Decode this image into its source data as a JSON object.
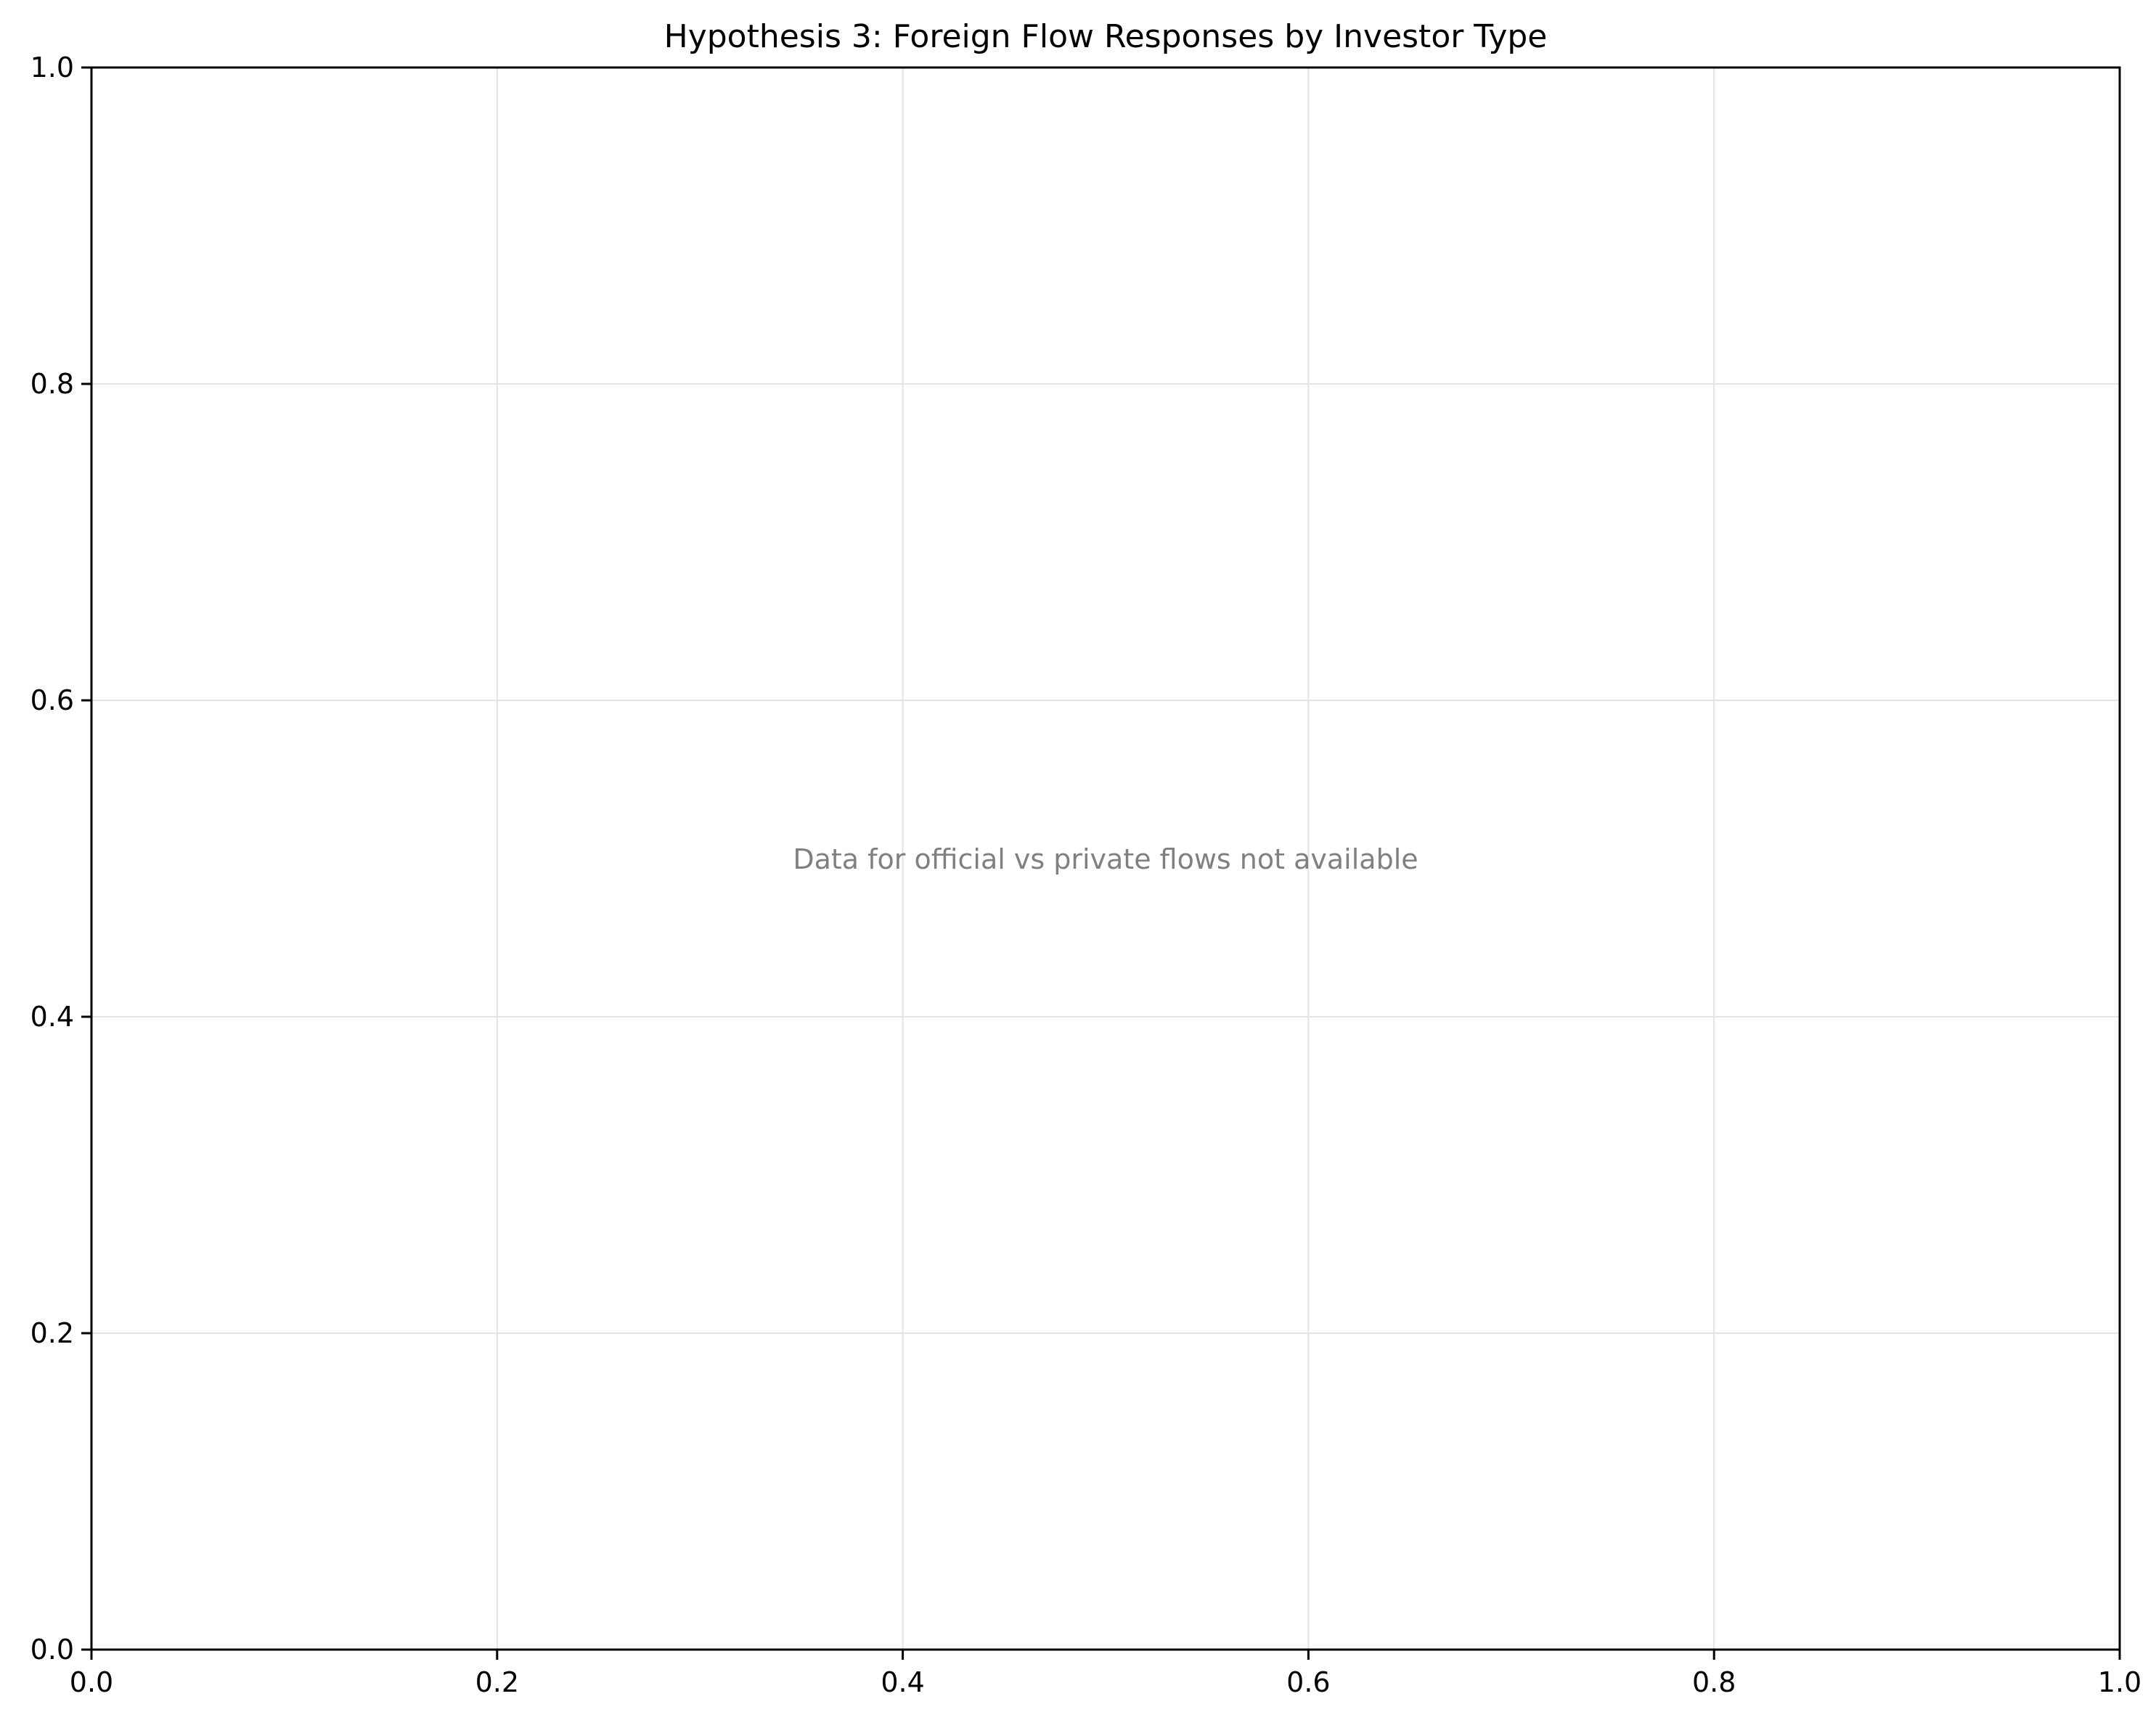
{
  "chart_data": {
    "type": "scatter",
    "title": "Hypothesis 3: Foreign Flow Responses by Investor Type",
    "xlabel": "",
    "ylabel": "",
    "xlim": [
      0.0,
      1.0
    ],
    "ylim": [
      0.0,
      1.0
    ],
    "xticks": [
      0.0,
      0.2,
      0.4,
      0.6,
      0.8,
      1.0
    ],
    "xtick_labels": [
      "0.0",
      "0.2",
      "0.4",
      "0.6",
      "0.8",
      "1.0"
    ],
    "yticks": [
      0.0,
      0.2,
      0.4,
      0.6,
      0.8,
      1.0
    ],
    "ytick_labels": [
      "0.0",
      "0.2",
      "0.4",
      "0.6",
      "0.8",
      "1.0"
    ],
    "grid": true,
    "series": [],
    "annotations": [
      {
        "text": "Data for official vs private flows not available",
        "x": 0.5,
        "y": 0.5,
        "color": "#808080"
      }
    ]
  }
}
